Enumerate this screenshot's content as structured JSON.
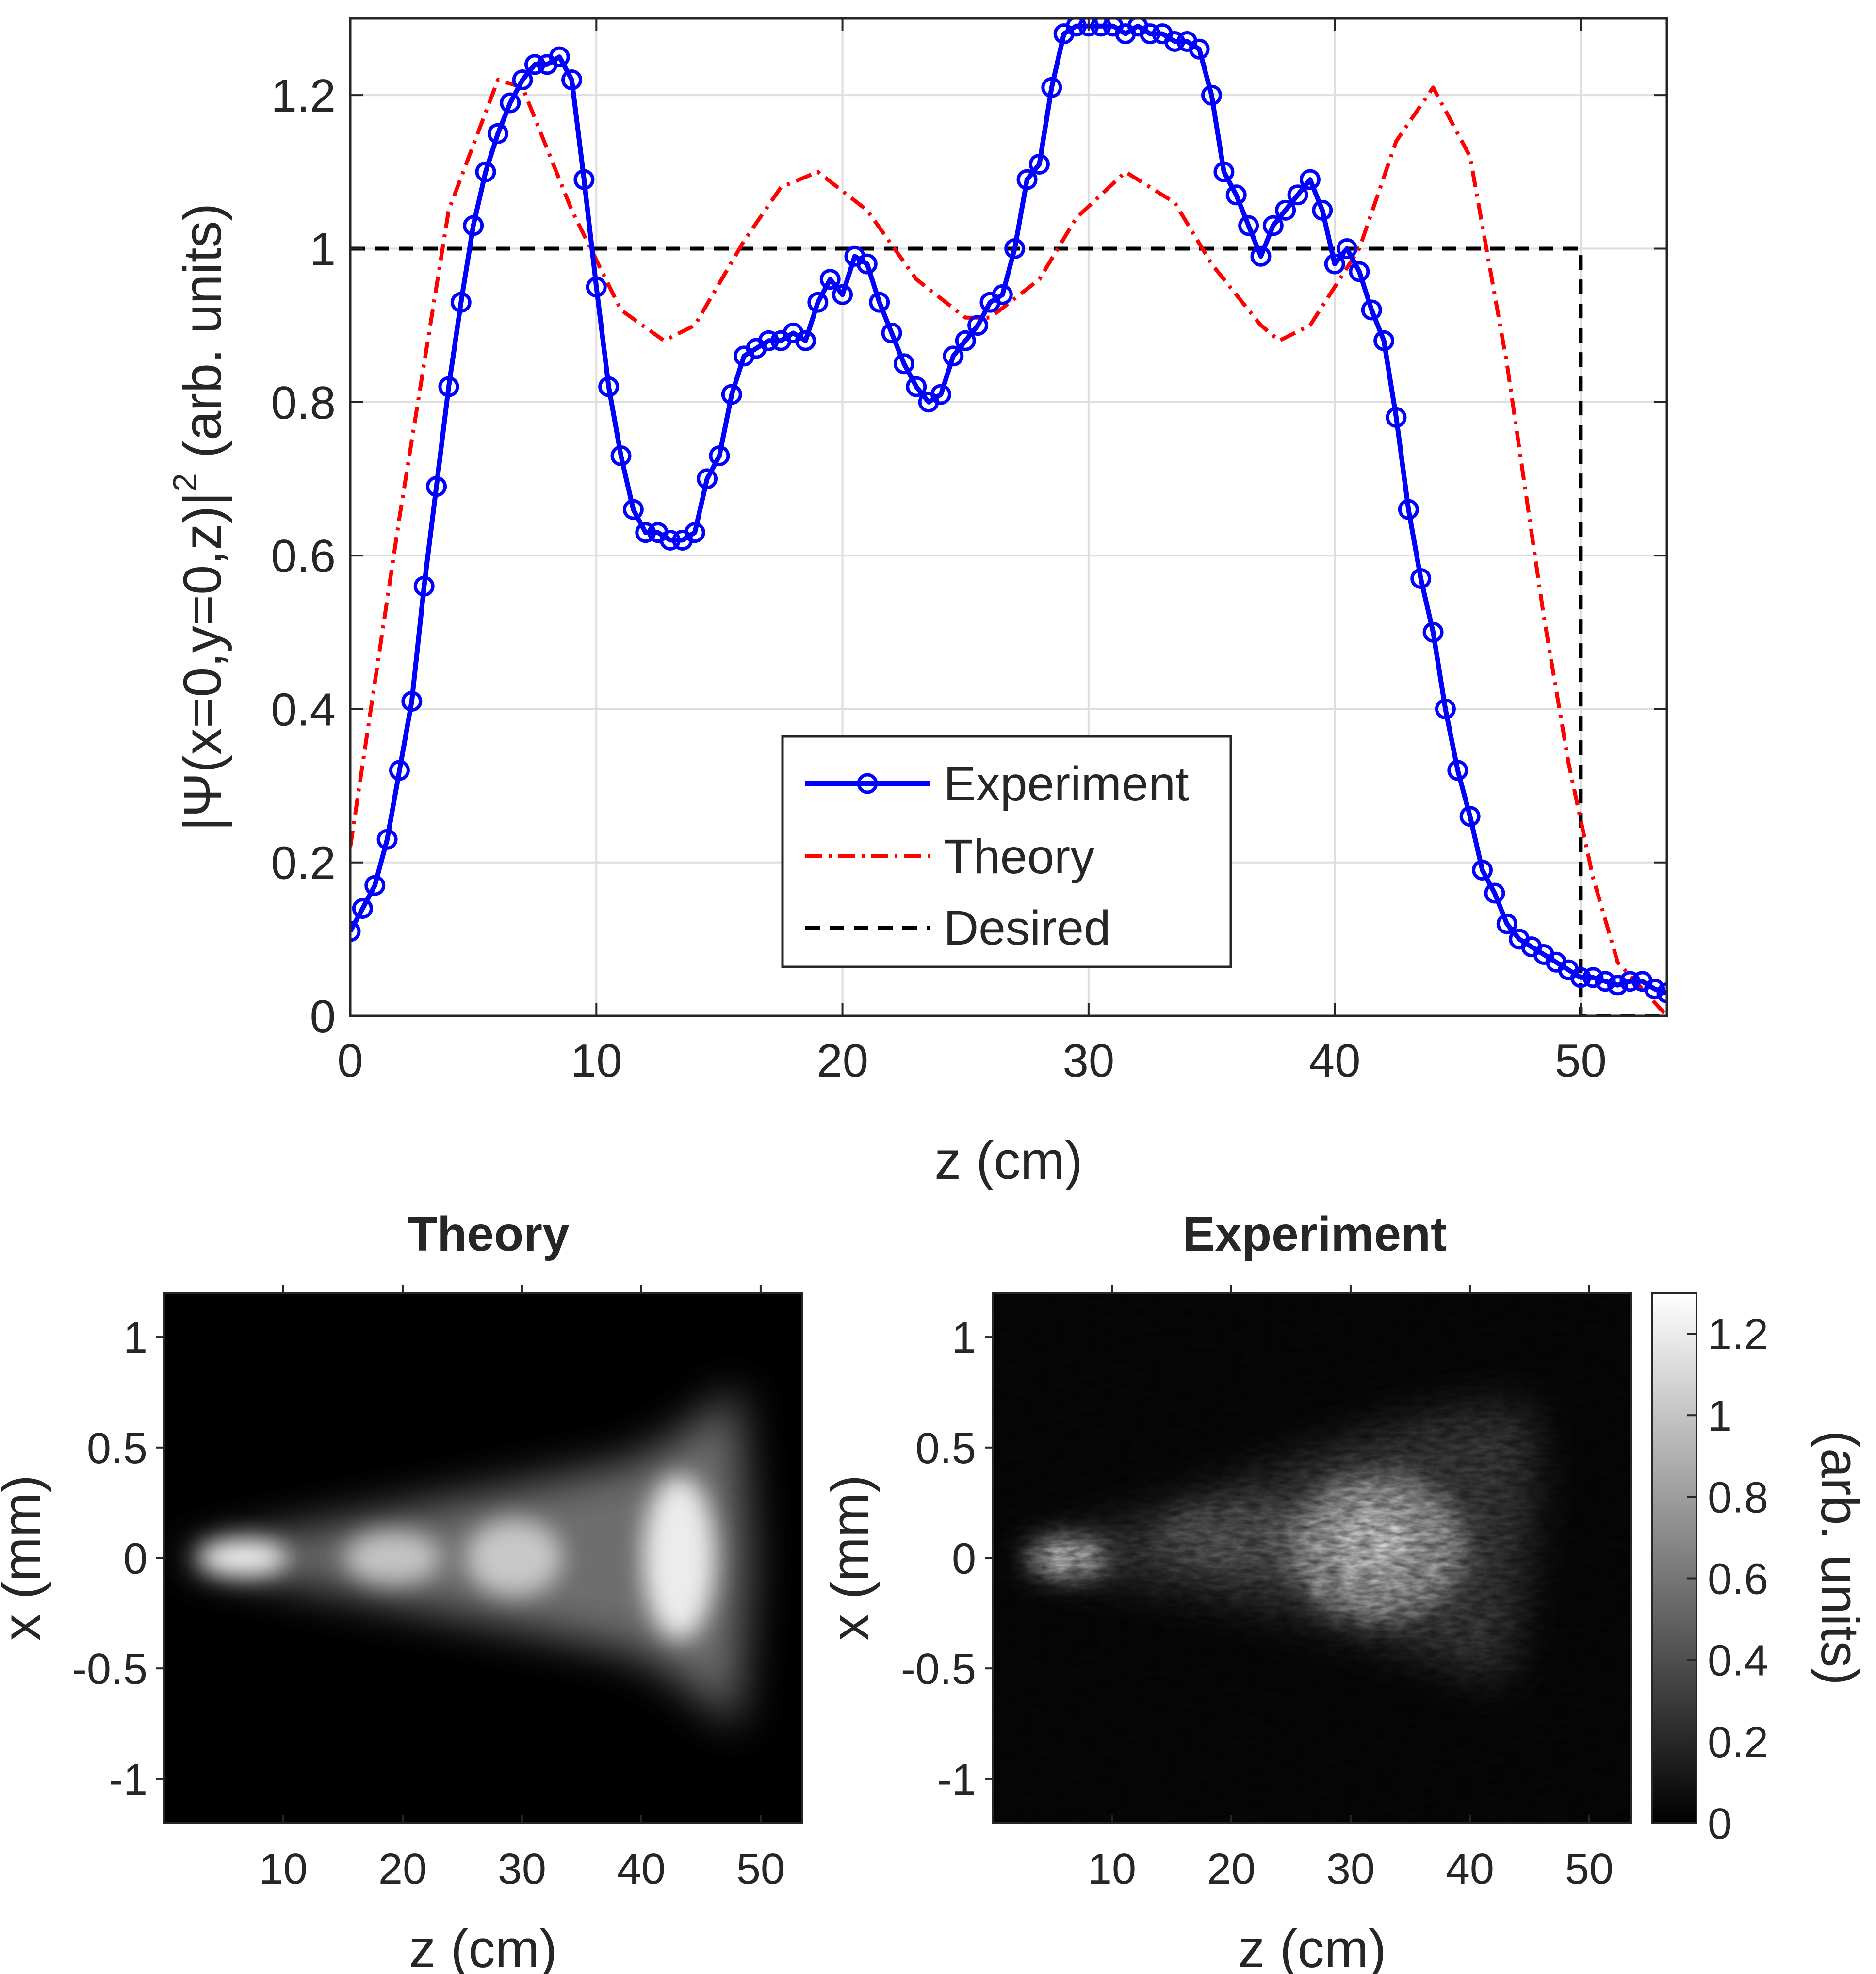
{
  "chart_data": [
    {
      "type": "line",
      "xlabel": "z (cm)",
      "ylabel": "|Ψ(x=0,y=0,z)|² (arb. units)",
      "ylabel_parts": {
        "pre": "|Ψ(x=0,y=0,z)|",
        "sup": "2",
        "post": " (arb. units)"
      },
      "xlim": [
        0,
        53.5
      ],
      "ylim": [
        0,
        1.3
      ],
      "xticks": [
        0,
        10,
        20,
        30,
        40,
        50
      ],
      "xtick_labels": [
        "0",
        "10",
        "20",
        "30",
        "40",
        "50"
      ],
      "yticks": [
        0,
        0.2,
        0.4,
        0.6,
        0.8,
        1,
        1.2
      ],
      "ytick_labels": [
        "0",
        "0.2",
        "0.4",
        "0.6",
        "0.8",
        "1",
        "1.2"
      ],
      "grid": true,
      "legend_position": "bottom-center",
      "series": [
        {
          "name": "Experiment",
          "color": "#0000ff",
          "style": "solid-circles",
          "x": [
            0,
            0.5,
            1,
            1.5,
            2,
            2.5,
            3,
            3.5,
            4,
            4.5,
            5,
            5.5,
            6,
            6.5,
            7,
            7.5,
            8,
            8.5,
            9,
            9.5,
            10,
            10.5,
            11,
            11.5,
            12,
            12.5,
            13,
            13.5,
            14,
            14.5,
            15,
            15.5,
            16,
            16.5,
            17,
            17.5,
            18,
            18.5,
            19,
            19.5,
            20,
            20.5,
            21,
            21.5,
            22,
            22.5,
            23,
            23.5,
            24,
            24.5,
            25,
            25.5,
            26,
            26.5,
            27,
            27.5,
            28,
            28.5,
            29,
            29.5,
            30,
            30.5,
            31,
            31.5,
            32,
            32.5,
            33,
            33.5,
            34,
            34.5,
            35,
            35.5,
            36,
            36.5,
            37,
            37.5,
            38,
            38.5,
            39,
            39.5,
            40,
            40.5,
            41,
            41.5,
            42,
            42.5,
            43,
            43.5,
            44,
            44.5,
            45,
            45.5,
            46,
            46.5,
            47,
            47.5,
            48,
            48.5,
            49,
            49.5,
            50,
            50.5,
            51,
            51.5,
            52,
            52.5,
            53,
            53.5
          ],
          "y": [
            0.11,
            0.14,
            0.17,
            0.23,
            0.32,
            0.41,
            0.56,
            0.69,
            0.82,
            0.93,
            1.03,
            1.1,
            1.15,
            1.19,
            1.22,
            1.24,
            1.24,
            1.25,
            1.22,
            1.09,
            0.95,
            0.82,
            0.73,
            0.66,
            0.63,
            0.63,
            0.62,
            0.62,
            0.63,
            0.7,
            0.73,
            0.81,
            0.86,
            0.87,
            0.88,
            0.88,
            0.89,
            0.88,
            0.93,
            0.96,
            0.94,
            0.99,
            0.98,
            0.93,
            0.89,
            0.85,
            0.82,
            0.8,
            0.81,
            0.86,
            0.88,
            0.9,
            0.93,
            0.94,
            1.0,
            1.09,
            1.11,
            1.21,
            1.28,
            1.29,
            1.29,
            1.29,
            1.29,
            1.28,
            1.29,
            1.28,
            1.28,
            1.27,
            1.27,
            1.26,
            1.2,
            1.1,
            1.07,
            1.03,
            0.99,
            1.03,
            1.05,
            1.07,
            1.09,
            1.05,
            0.98,
            1.0,
            0.97,
            0.92,
            0.88,
            0.78,
            0.66,
            0.57,
            0.5,
            0.4,
            0.32,
            0.26,
            0.19,
            0.16,
            0.12,
            0.1,
            0.09,
            0.08,
            0.07,
            0.06,
            0.05,
            0.05,
            0.045,
            0.04,
            0.045,
            0.045,
            0.035,
            0.03
          ]
        },
        {
          "name": "Theory",
          "color": "#ff0000",
          "style": "dash-dot",
          "x": [
            0,
            2,
            4,
            6,
            7,
            9,
            11,
            12.75,
            14,
            16,
            17.5,
            19,
            21,
            23,
            25,
            26,
            28,
            29.5,
            31.5,
            33.5,
            35,
            37,
            37.75,
            39,
            41,
            42.5,
            44,
            45.5,
            47,
            48.5,
            49.5,
            50.5,
            51.5,
            53.5
          ],
          "y": [
            0.22,
            0.65,
            1.05,
            1.22,
            1.21,
            1.05,
            0.92,
            0.88,
            0.9,
            1.01,
            1.08,
            1.1,
            1.05,
            0.96,
            0.91,
            0.91,
            0.96,
            1.04,
            1.1,
            1.06,
            0.98,
            0.9,
            0.88,
            0.9,
            1.0,
            1.14,
            1.21,
            1.12,
            0.85,
            0.52,
            0.33,
            0.18,
            0.07,
            0.0
          ]
        },
        {
          "name": "Desired",
          "color": "#000000",
          "style": "dashed",
          "x": [
            0,
            50,
            50,
            53.5
          ],
          "y": [
            1,
            1,
            0,
            0
          ]
        }
      ]
    },
    {
      "type": "heatmap",
      "title": "Theory",
      "xlabel": "z (cm)",
      "ylabel": "x (mm)",
      "xlim": [
        0,
        53.5
      ],
      "ylim": [
        -1.2,
        1.2
      ],
      "xticks": [
        10,
        20,
        30,
        40,
        50
      ],
      "xtick_labels": [
        "10",
        "20",
        "30",
        "40",
        "50"
      ],
      "yticks": [
        1,
        0.5,
        0,
        -0.5,
        -1
      ],
      "ytick_labels": [
        "1",
        "0.5",
        "0",
        "-0.5",
        "-1"
      ],
      "colormap": "gray"
    },
    {
      "type": "heatmap",
      "title": "Experiment",
      "xlabel": "z (cm)",
      "ylabel": "x (mm)",
      "xlim": [
        0,
        53.5
      ],
      "ylim": [
        -1.2,
        1.2
      ],
      "xticks": [
        10,
        20,
        30,
        40,
        50
      ],
      "xtick_labels": [
        "10",
        "20",
        "30",
        "40",
        "50"
      ],
      "yticks": [
        1,
        0.5,
        0,
        -0.5,
        -1
      ],
      "ytick_labels": [
        "1",
        "0.5",
        "0",
        "-0.5",
        "-1"
      ],
      "colormap": "gray",
      "colorbar": {
        "label": "(arb. units)",
        "range": [
          0,
          1.3
        ],
        "ticks": [
          0,
          0.2,
          0.4,
          0.6,
          0.8,
          1,
          1.2
        ],
        "tick_labels": [
          "0",
          "0.2",
          "0.4",
          "0.6",
          "0.8",
          "1",
          "1.2"
        ]
      }
    }
  ]
}
